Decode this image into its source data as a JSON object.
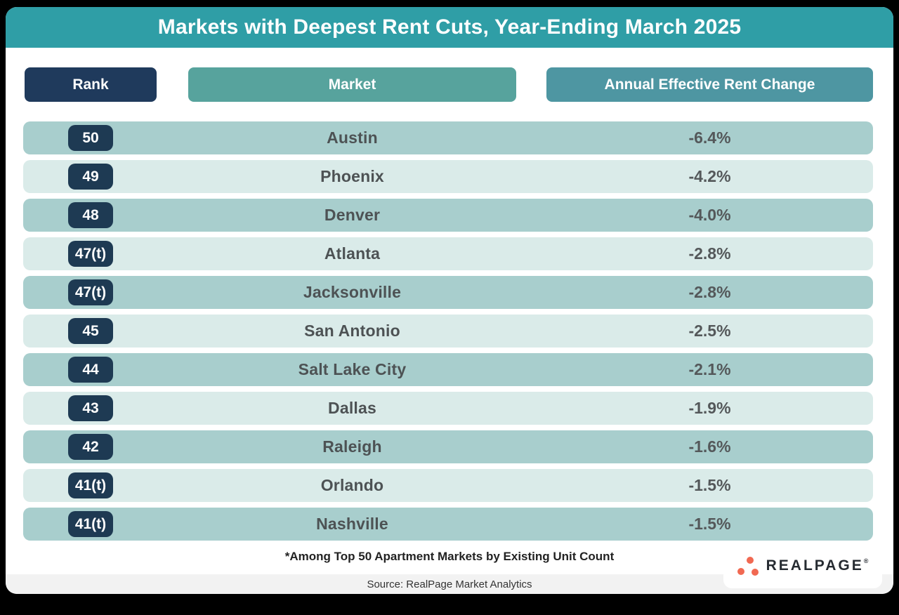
{
  "title": "Markets with Deepest Rent Cuts, Year-Ending March 2025",
  "columns": {
    "rank": "Rank",
    "market": "Market",
    "change": "Annual Effective Rent Change"
  },
  "rows": [
    {
      "rank": "50",
      "market": "Austin",
      "change": "-6.4%"
    },
    {
      "rank": "49",
      "market": "Phoenix",
      "change": "-4.2%"
    },
    {
      "rank": "48",
      "market": "Denver",
      "change": "-4.0%"
    },
    {
      "rank": "47(t)",
      "market": "Atlanta",
      "change": "-2.8%"
    },
    {
      "rank": "47(t)",
      "market": "Jacksonville",
      "change": "-2.8%"
    },
    {
      "rank": "45",
      "market": "San Antonio",
      "change": "-2.5%"
    },
    {
      "rank": "44",
      "market": "Salt Lake City",
      "change": "-2.1%"
    },
    {
      "rank": "43",
      "market": "Dallas",
      "change": "-1.9%"
    },
    {
      "rank": "42",
      "market": "Raleigh",
      "change": "-1.6%"
    },
    {
      "rank": "41(t)",
      "market": "Orlando",
      "change": "-1.5%"
    },
    {
      "rank": "41(t)",
      "market": "Nashville",
      "change": "-1.5%"
    }
  ],
  "footnote": "*Among Top 50 Apartment Markets by Existing Unit Count",
  "source": "Source: RealPage Market Analytics",
  "logo": {
    "text": "REALPAGE",
    "mark": "®"
  },
  "colors": {
    "header_teal": "#2f9ea6",
    "rank_navy": "#1f3a5c",
    "market_pill_teal": "#57a39d",
    "change_pill_teal": "#4e96a2",
    "row_dark": "#a8cecd",
    "row_light": "#daebe9",
    "logo_coral": "#f16952",
    "source_strip": "#f2f2f2"
  },
  "chart_data": {
    "type": "table",
    "title": "Markets with Deepest Rent Cuts, Year-Ending March 2025",
    "columns": [
      "Rank",
      "Market",
      "Annual Effective Rent Change"
    ],
    "rows": [
      [
        "50",
        "Austin",
        "-6.4%"
      ],
      [
        "49",
        "Phoenix",
        "-4.2%"
      ],
      [
        "48",
        "Denver",
        "-4.0%"
      ],
      [
        "47(t)",
        "Atlanta",
        "-2.8%"
      ],
      [
        "47(t)",
        "Jacksonville",
        "-2.8%"
      ],
      [
        "45",
        "San Antonio",
        "-2.5%"
      ],
      [
        "44",
        "Salt Lake City",
        "-2.1%"
      ],
      [
        "43",
        "Dallas",
        "-1.9%"
      ],
      [
        "42",
        "Raleigh",
        "-1.6%"
      ],
      [
        "41(t)",
        "Orlando",
        "-1.5%"
      ],
      [
        "41(t)",
        "Nashville",
        "-1.5%"
      ]
    ],
    "categories": [
      "Austin",
      "Phoenix",
      "Denver",
      "Atlanta",
      "Jacksonville",
      "San Antonio",
      "Salt Lake City",
      "Dallas",
      "Raleigh",
      "Orlando",
      "Nashville"
    ],
    "values": [
      -6.4,
      -4.2,
      -4.0,
      -2.8,
      -2.8,
      -2.5,
      -2.1,
      -1.9,
      -1.6,
      -1.5,
      -1.5
    ],
    "footnote": "*Among Top 50 Apartment Markets by Existing Unit Count",
    "source": "Source: RealPage Market Analytics"
  }
}
